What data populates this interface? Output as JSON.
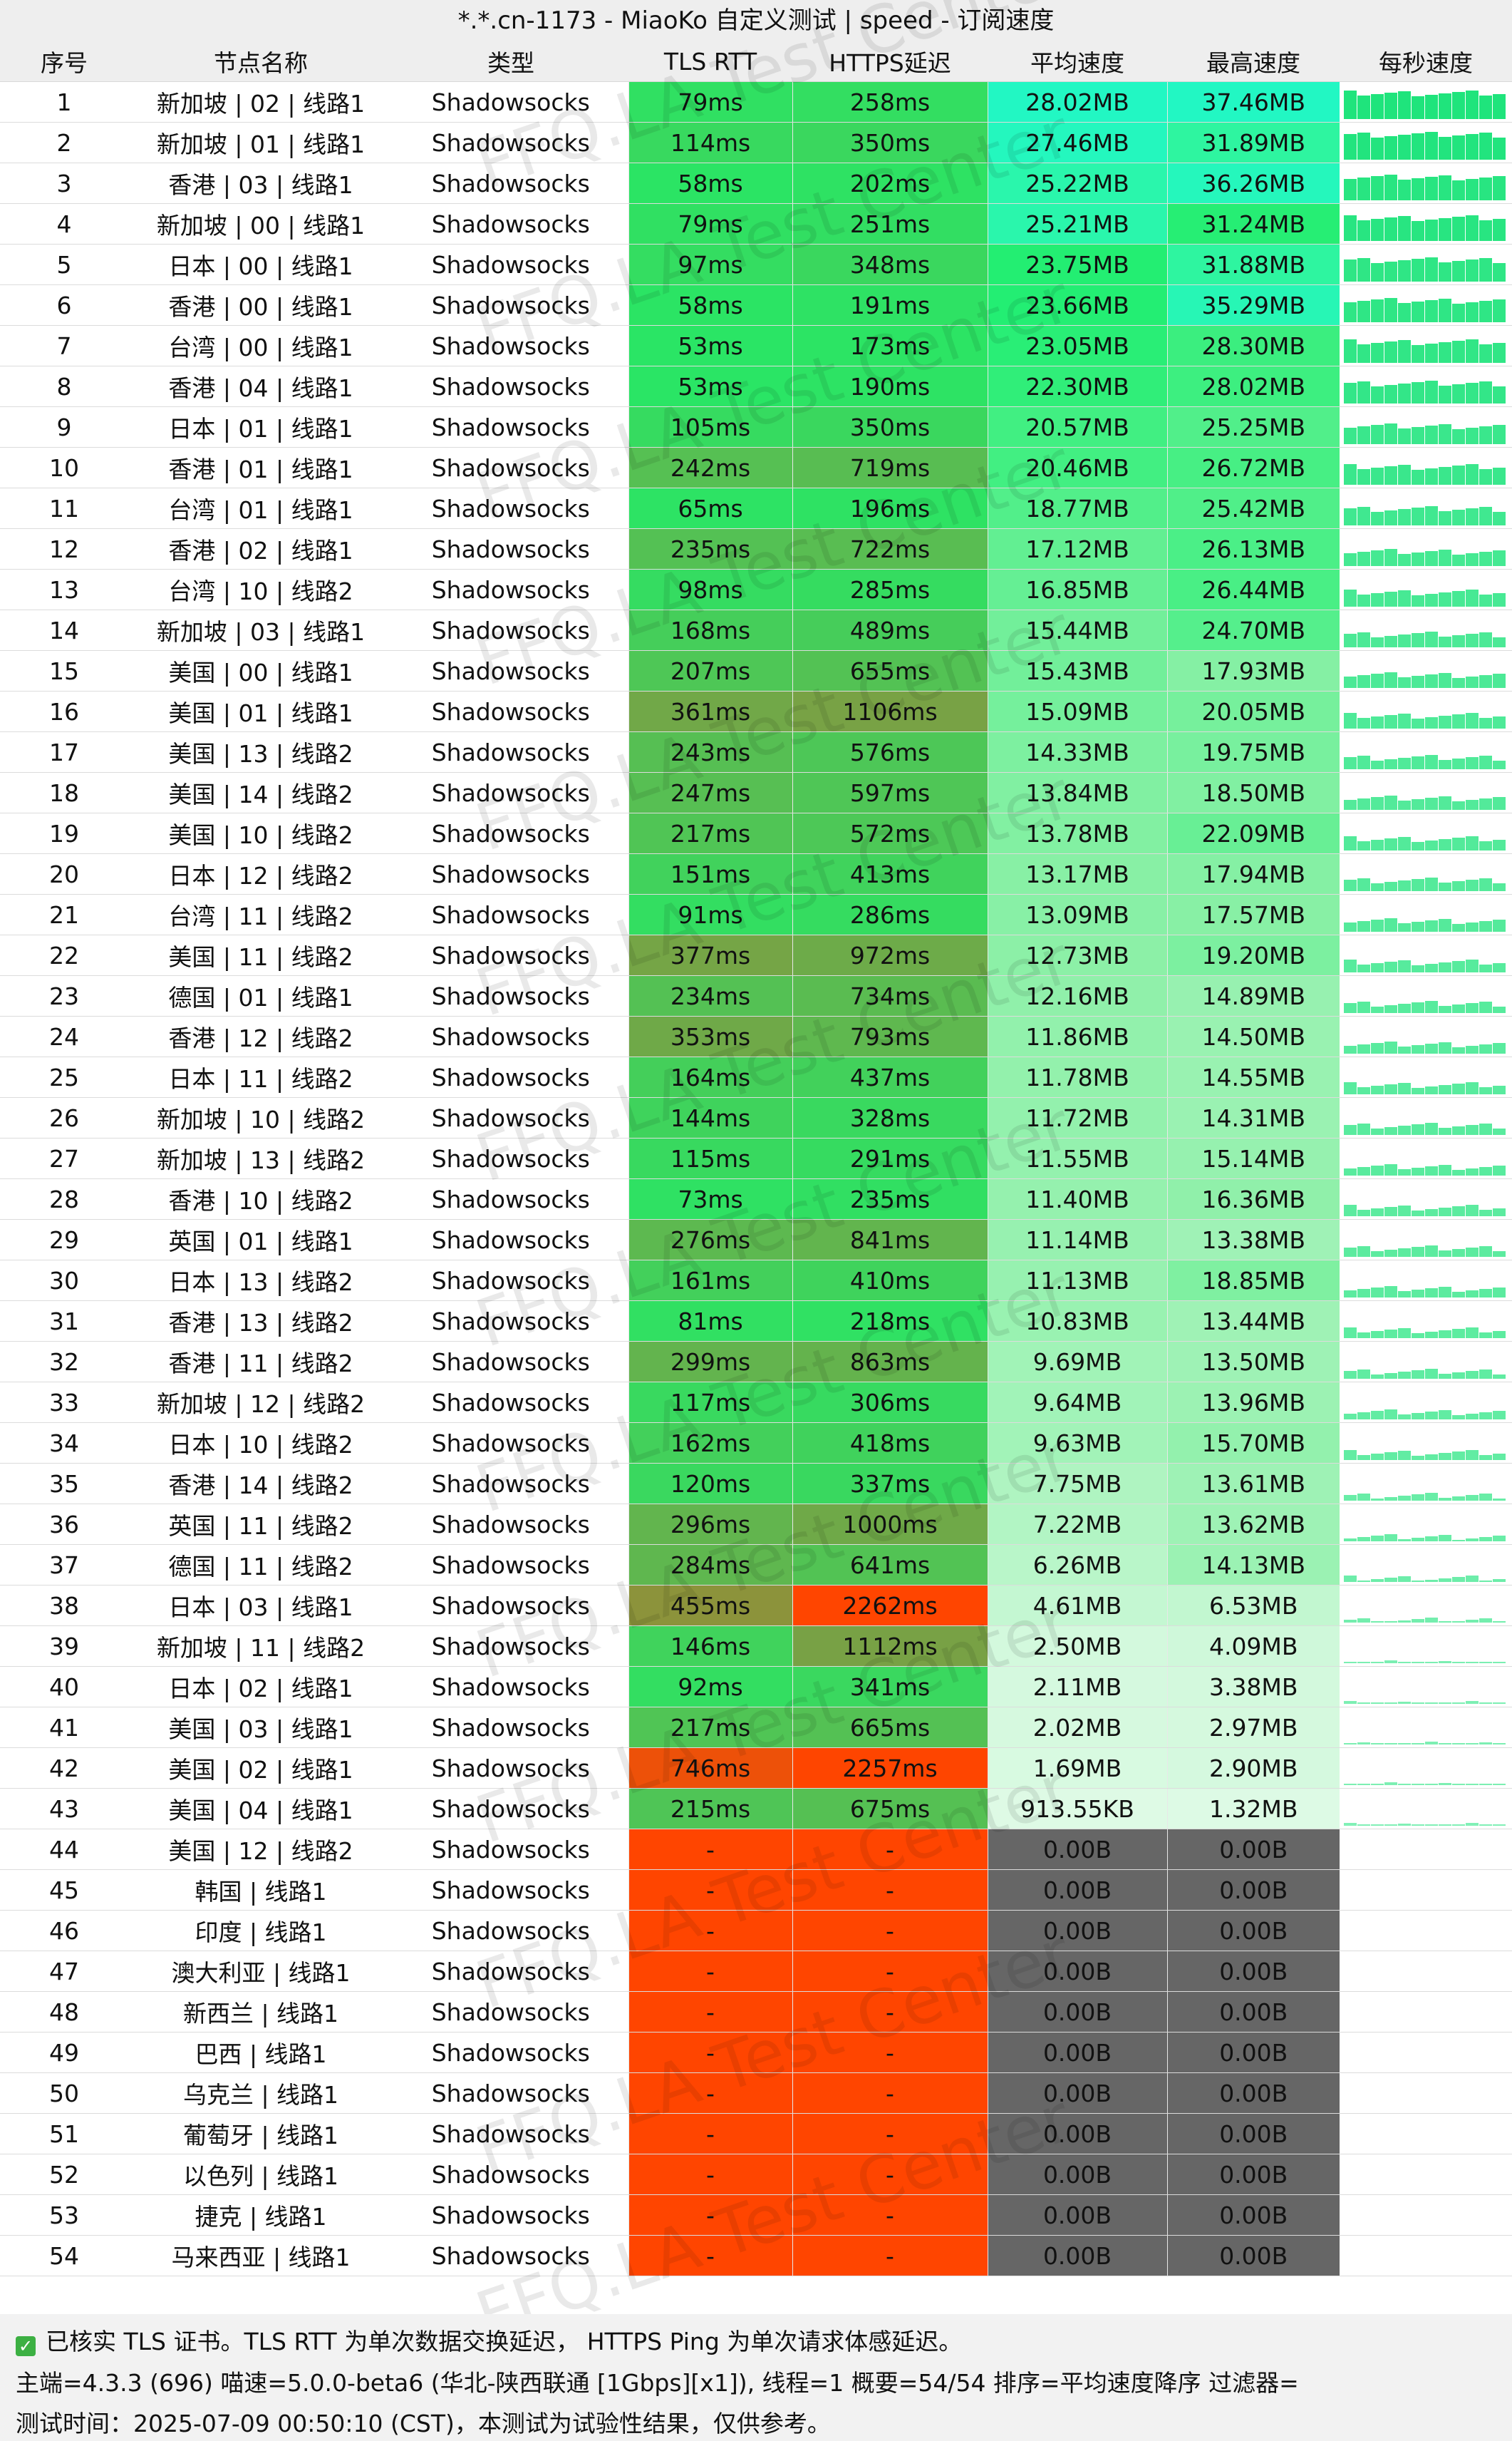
{
  "title": "*.*.cn-1173 - MiaoKo 自定义测试 | speed - 订阅速度",
  "watermark": "FFQ.LA Test Center",
  "columns": [
    "序号",
    "节点名称",
    "类型",
    "TLS RTT",
    "HTTPS延迟",
    "平均速度",
    "最高速度",
    "每秒速度"
  ],
  "rows": [
    [
      "1",
      "新加坡 | 02 | 线路1",
      "Shadowsocks",
      "79ms",
      "258ms",
      "28.02MB",
      "37.46MB"
    ],
    [
      "2",
      "新加坡 | 01 | 线路1",
      "Shadowsocks",
      "114ms",
      "350ms",
      "27.46MB",
      "31.89MB"
    ],
    [
      "3",
      "香港 | 03 | 线路1",
      "Shadowsocks",
      "58ms",
      "202ms",
      "25.22MB",
      "36.26MB"
    ],
    [
      "4",
      "新加坡 | 00 | 线路1",
      "Shadowsocks",
      "79ms",
      "251ms",
      "25.21MB",
      "31.24MB"
    ],
    [
      "5",
      "日本 | 00 | 线路1",
      "Shadowsocks",
      "97ms",
      "348ms",
      "23.75MB",
      "31.88MB"
    ],
    [
      "6",
      "香港 | 00 | 线路1",
      "Shadowsocks",
      "58ms",
      "191ms",
      "23.66MB",
      "35.29MB"
    ],
    [
      "7",
      "台湾 | 00 | 线路1",
      "Shadowsocks",
      "53ms",
      "173ms",
      "23.05MB",
      "28.30MB"
    ],
    [
      "8",
      "香港 | 04 | 线路1",
      "Shadowsocks",
      "53ms",
      "190ms",
      "22.30MB",
      "28.02MB"
    ],
    [
      "9",
      "日本 | 01 | 线路1",
      "Shadowsocks",
      "105ms",
      "350ms",
      "20.57MB",
      "25.25MB"
    ],
    [
      "10",
      "香港 | 01 | 线路1",
      "Shadowsocks",
      "242ms",
      "719ms",
      "20.46MB",
      "26.72MB"
    ],
    [
      "11",
      "台湾 | 01 | 线路1",
      "Shadowsocks",
      "65ms",
      "196ms",
      "18.77MB",
      "25.42MB"
    ],
    [
      "12",
      "香港 | 02 | 线路1",
      "Shadowsocks",
      "235ms",
      "722ms",
      "17.12MB",
      "26.13MB"
    ],
    [
      "13",
      "台湾 | 10 | 线路2",
      "Shadowsocks",
      "98ms",
      "285ms",
      "16.85MB",
      "26.44MB"
    ],
    [
      "14",
      "新加坡 | 03 | 线路1",
      "Shadowsocks",
      "168ms",
      "489ms",
      "15.44MB",
      "24.70MB"
    ],
    [
      "15",
      "美国 | 00 | 线路1",
      "Shadowsocks",
      "207ms",
      "655ms",
      "15.43MB",
      "17.93MB"
    ],
    [
      "16",
      "美国 | 01 | 线路1",
      "Shadowsocks",
      "361ms",
      "1106ms",
      "15.09MB",
      "20.05MB"
    ],
    [
      "17",
      "美国 | 13 | 线路2",
      "Shadowsocks",
      "243ms",
      "576ms",
      "14.33MB",
      "19.75MB"
    ],
    [
      "18",
      "美国 | 14 | 线路2",
      "Shadowsocks",
      "247ms",
      "597ms",
      "13.84MB",
      "18.50MB"
    ],
    [
      "19",
      "美国 | 10 | 线路2",
      "Shadowsocks",
      "217ms",
      "572ms",
      "13.78MB",
      "22.09MB"
    ],
    [
      "20",
      "日本 | 12 | 线路2",
      "Shadowsocks",
      "151ms",
      "413ms",
      "13.17MB",
      "17.94MB"
    ],
    [
      "21",
      "台湾 | 11 | 线路2",
      "Shadowsocks",
      "91ms",
      "286ms",
      "13.09MB",
      "17.57MB"
    ],
    [
      "22",
      "美国 | 11 | 线路2",
      "Shadowsocks",
      "377ms",
      "972ms",
      "12.73MB",
      "19.20MB"
    ],
    [
      "23",
      "德国 | 01 | 线路1",
      "Shadowsocks",
      "234ms",
      "734ms",
      "12.16MB",
      "14.89MB"
    ],
    [
      "24",
      "香港 | 12 | 线路2",
      "Shadowsocks",
      "353ms",
      "793ms",
      "11.86MB",
      "14.50MB"
    ],
    [
      "25",
      "日本 | 11 | 线路2",
      "Shadowsocks",
      "164ms",
      "437ms",
      "11.78MB",
      "14.55MB"
    ],
    [
      "26",
      "新加坡 | 10 | 线路2",
      "Shadowsocks",
      "144ms",
      "328ms",
      "11.72MB",
      "14.31MB"
    ],
    [
      "27",
      "新加坡 | 13 | 线路2",
      "Shadowsocks",
      "115ms",
      "291ms",
      "11.55MB",
      "15.14MB"
    ],
    [
      "28",
      "香港 | 10 | 线路2",
      "Shadowsocks",
      "73ms",
      "235ms",
      "11.40MB",
      "16.36MB"
    ],
    [
      "29",
      "英国 | 01 | 线路1",
      "Shadowsocks",
      "276ms",
      "841ms",
      "11.14MB",
      "13.38MB"
    ],
    [
      "30",
      "日本 | 13 | 线路2",
      "Shadowsocks",
      "161ms",
      "410ms",
      "11.13MB",
      "18.85MB"
    ],
    [
      "31",
      "香港 | 13 | 线路2",
      "Shadowsocks",
      "81ms",
      "218ms",
      "10.83MB",
      "13.44MB"
    ],
    [
      "32",
      "香港 | 11 | 线路2",
      "Shadowsocks",
      "299ms",
      "863ms",
      "9.69MB",
      "13.50MB"
    ],
    [
      "33",
      "新加坡 | 12 | 线路2",
      "Shadowsocks",
      "117ms",
      "306ms",
      "9.64MB",
      "13.96MB"
    ],
    [
      "34",
      "日本 | 10 | 线路2",
      "Shadowsocks",
      "162ms",
      "418ms",
      "9.63MB",
      "15.70MB"
    ],
    [
      "35",
      "香港 | 14 | 线路2",
      "Shadowsocks",
      "120ms",
      "337ms",
      "7.75MB",
      "13.61MB"
    ],
    [
      "36",
      "英国 | 11 | 线路2",
      "Shadowsocks",
      "296ms",
      "1000ms",
      "7.22MB",
      "13.62MB"
    ],
    [
      "37",
      "德国 | 11 | 线路2",
      "Shadowsocks",
      "284ms",
      "641ms",
      "6.26MB",
      "14.13MB"
    ],
    [
      "38",
      "日本 | 03 | 线路1",
      "Shadowsocks",
      "455ms",
      "2262ms",
      "4.61MB",
      "6.53MB"
    ],
    [
      "39",
      "新加坡 | 11 | 线路2",
      "Shadowsocks",
      "146ms",
      "1112ms",
      "2.50MB",
      "4.09MB"
    ],
    [
      "40",
      "日本 | 02 | 线路1",
      "Shadowsocks",
      "92ms",
      "341ms",
      "2.11MB",
      "3.38MB"
    ],
    [
      "41",
      "美国 | 03 | 线路1",
      "Shadowsocks",
      "217ms",
      "665ms",
      "2.02MB",
      "2.97MB"
    ],
    [
      "42",
      "美国 | 02 | 线路1",
      "Shadowsocks",
      "746ms",
      "2257ms",
      "1.69MB",
      "2.90MB"
    ],
    [
      "43",
      "美国 | 04 | 线路1",
      "Shadowsocks",
      "215ms",
      "675ms",
      "913.55KB",
      "1.32MB"
    ],
    [
      "44",
      "美国 | 12 | 线路2",
      "Shadowsocks",
      "-",
      "-",
      "0.00B",
      "0.00B"
    ],
    [
      "45",
      "韩国 | 线路1",
      "Shadowsocks",
      "-",
      "-",
      "0.00B",
      "0.00B"
    ],
    [
      "46",
      "印度 | 线路1",
      "Shadowsocks",
      "-",
      "-",
      "0.00B",
      "0.00B"
    ],
    [
      "47",
      "澳大利亚 | 线路1",
      "Shadowsocks",
      "-",
      "-",
      "0.00B",
      "0.00B"
    ],
    [
      "48",
      "新西兰 | 线路1",
      "Shadowsocks",
      "-",
      "-",
      "0.00B",
      "0.00B"
    ],
    [
      "49",
      "巴西 | 线路1",
      "Shadowsocks",
      "-",
      "-",
      "0.00B",
      "0.00B"
    ],
    [
      "50",
      "乌克兰 | 线路1",
      "Shadowsocks",
      "-",
      "-",
      "0.00B",
      "0.00B"
    ],
    [
      "51",
      "葡萄牙 | 线路1",
      "Shadowsocks",
      "-",
      "-",
      "0.00B",
      "0.00B"
    ],
    [
      "52",
      "以色列 | 线路1",
      "Shadowsocks",
      "-",
      "-",
      "0.00B",
      "0.00B"
    ],
    [
      "53",
      "捷克 | 线路1",
      "Shadowsocks",
      "-",
      "-",
      "0.00B",
      "0.00B"
    ],
    [
      "54",
      "马来西亚 | 线路1",
      "Shadowsocks",
      "-",
      "-",
      "0.00B",
      "0.00B"
    ]
  ],
  "footer": {
    "line1": "已核实 TLS 证书。TLS RTT 为单次数据交换延迟， HTTPS Ping 为单次请求体感延迟。",
    "line2": "主端=4.3.3 (696) 喵速=5.0.0-beta6 (华北-陕西联通 [1Gbps][x1]), 线程=1 概要=54/54 排序=平均速度降序 过滤器=",
    "line3": "测试时间：2025-07-09 00:50:10 (CST)，本测试为试验性结果，仅供参考。"
  },
  "colors": {
    "header_bg": "#eeeeee",
    "failed_latency": "#ff4500",
    "failed_speed": "#666666",
    "spark": "#1fe47c"
  }
}
